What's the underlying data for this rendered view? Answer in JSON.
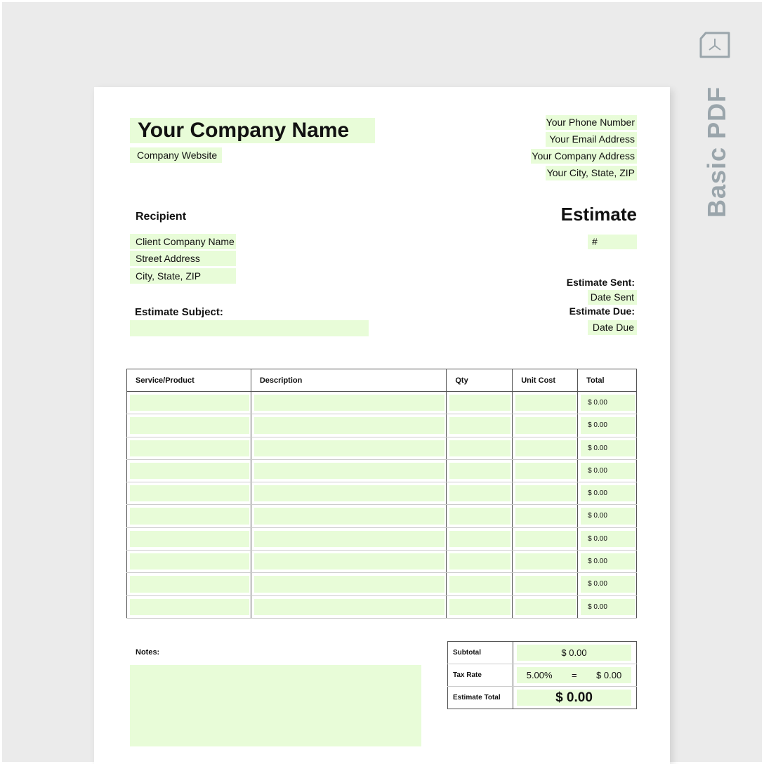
{
  "brand": {
    "label": "Basic PDF",
    "icon": "pdf-file-icon",
    "color": "#9aa5ab"
  },
  "company": {
    "name": "Your Company Name",
    "website": "Company Website",
    "phone": "Your Phone Number",
    "email": "Your Email Address",
    "address": "Your Company Address",
    "city": "Your City, State, ZIP"
  },
  "recipient": {
    "heading": "Recipient",
    "company": "Client Company Name",
    "street": "Street Address",
    "city": "City, State, ZIP"
  },
  "estimate": {
    "title": "Estimate",
    "number": "#",
    "sent_label": "Estimate Sent:",
    "sent_value": "Date Sent",
    "due_label": "Estimate Due:",
    "due_value": "Date Due",
    "subject_label": "Estimate Subject:"
  },
  "table": {
    "headers": [
      "Service/Product",
      "Description",
      "Qty",
      "Unit Cost",
      "Total"
    ],
    "rows": [
      "$ 0.00",
      "$ 0.00",
      "$ 0.00",
      "$ 0.00",
      "$ 0.00",
      "$ 0.00",
      "$ 0.00",
      "$ 0.00",
      "$ 0.00",
      "$ 0.00"
    ]
  },
  "notes": {
    "label": "Notes:"
  },
  "totals": {
    "subtotal_label": "Subtotal",
    "subtotal": "$ 0.00",
    "tax_label": "Tax Rate",
    "tax_rate": "5.00%",
    "equals": "=",
    "tax_amount": "$ 0.00",
    "total_label": "Estimate Total",
    "total": "$ 0.00"
  },
  "colors": {
    "field": "#e8fcd8"
  }
}
